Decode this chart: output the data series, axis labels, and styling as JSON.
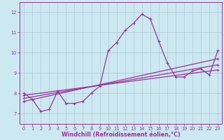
{
  "xlabel": "Windchill (Refroidissement éolien,°C)",
  "background_color": "#cce8f0",
  "grid_color": "#b0c8d8",
  "line_color": "#993399",
  "xlim": [
    -0.5,
    23.5
  ],
  "ylim": [
    6.5,
    12.5
  ],
  "yticks": [
    7,
    8,
    9,
    10,
    11,
    12
  ],
  "xticks": [
    0,
    1,
    2,
    3,
    4,
    5,
    6,
    7,
    8,
    9,
    10,
    11,
    12,
    13,
    14,
    15,
    16,
    17,
    18,
    19,
    20,
    21,
    22,
    23
  ],
  "line1_x": [
    0,
    1,
    2,
    3,
    4,
    5,
    6,
    7,
    8,
    9,
    10,
    11,
    12,
    13,
    14,
    15,
    16,
    17,
    18,
    19,
    20,
    21,
    22,
    23
  ],
  "line1_y": [
    8.0,
    7.7,
    7.1,
    7.2,
    8.1,
    7.5,
    7.5,
    7.6,
    8.0,
    8.35,
    10.1,
    10.5,
    11.1,
    11.45,
    11.9,
    11.65,
    10.55,
    9.5,
    8.8,
    8.8,
    9.1,
    9.2,
    8.9,
    10.1
  ],
  "line2_x": [
    0,
    23
  ],
  "line2_y": [
    7.6,
    9.7
  ],
  "line3_x": [
    0,
    23
  ],
  "line3_y": [
    7.75,
    9.4
  ],
  "line4_x": [
    0,
    23
  ],
  "line4_y": [
    7.9,
    9.15
  ],
  "marker_size": 2.5,
  "line_width": 0.9,
  "tick_fontsize": 4.8,
  "xlabel_fontsize": 5.8
}
